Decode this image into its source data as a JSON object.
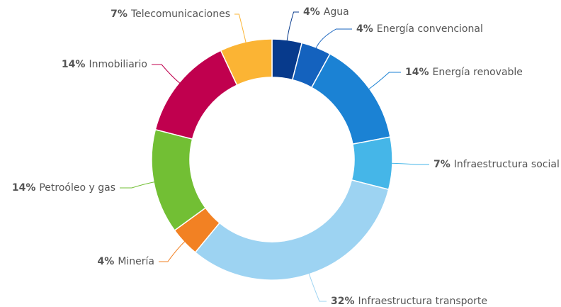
{
  "chart_data": {
    "type": "donut",
    "categories": [
      "Agua",
      "Energía convencional",
      "Energía renovable",
      "Infraestructura social",
      "Infraestructura transporte",
      "Minería",
      "Petroóleo y gas",
      "Inmobiliario",
      "Telecomunicaciones"
    ],
    "values": [
      4,
      4,
      14,
      7,
      32,
      4,
      14,
      14,
      7
    ],
    "value_labels": [
      "4%",
      "4%",
      "14%",
      "7%",
      "32%",
      "4%",
      "14%",
      "14%",
      "7%"
    ],
    "colors": [
      "#073a8c",
      "#1462be",
      "#1b82d4",
      "#45b6e8",
      "#9dd3f2",
      "#f28123",
      "#72bf34",
      "#c0004e",
      "#fbb434"
    ]
  }
}
